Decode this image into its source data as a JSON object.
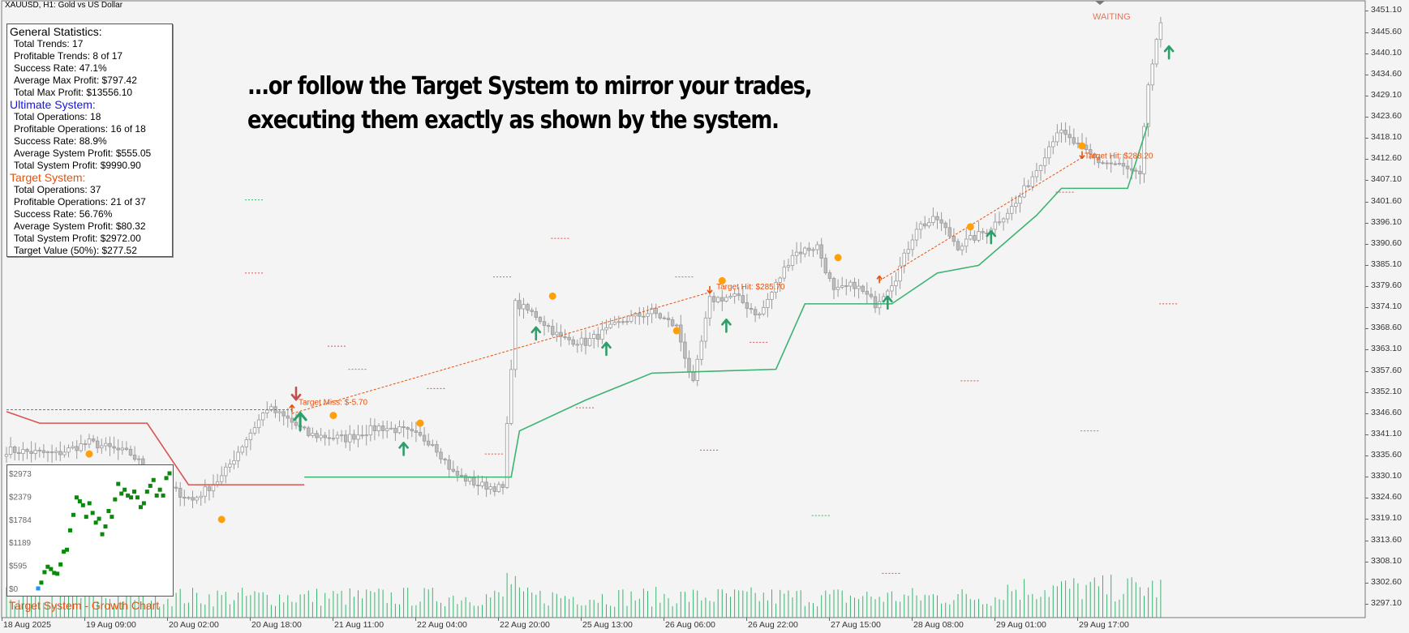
{
  "symbol_title": "XAUUSD, H1:  Gold vs US Dollar",
  "overlay_text": [
    "...or follow the Target System to mirror your trades,",
    "executing them exactly as shown by the system."
  ],
  "general": {
    "title": "General Statistics:",
    "rows": [
      "Total Trends: 17",
      "Profitable Trends: 8 of 17",
      "Success Rate: 47.1%",
      "Average Max Profit: $797.42",
      "Total Max Profit: $13556.10"
    ]
  },
  "ultimate": {
    "title": "Ultimate System:",
    "rows": [
      "Total Operations: 18",
      "Profitable Operations: 16 of 18",
      "Success Rate: 88.9%",
      "Average System Profit: $555.05",
      "Total System Profit: $9990.90"
    ]
  },
  "target": {
    "title": "Target System:",
    "rows": [
      "Total Operations: 37",
      "Profitable Operations: 21 of 37",
      "Success Rate: 56.76%",
      "Average System Profit: $80.32",
      "Total System Profit: $2972.00",
      "Target Value (50%): $277.52"
    ]
  },
  "status_text": "WAITING",
  "trade_labels": [
    "Target Miss: $-5.70",
    "Target Hit: $285.70",
    "Target Hit: $288.20"
  ],
  "growth_chart": {
    "caption": "Target System - Growth Chart",
    "y_ticks": [
      "$2973",
      "$2379",
      "$1784",
      "$1189",
      "$595",
      "$0"
    ],
    "y_max": 2973,
    "points": [
      0,
      150,
      420,
      560,
      500,
      400,
      380,
      620,
      950,
      1000,
      1500,
      1900,
      2350,
      2250,
      2150,
      1850,
      2200,
      1950,
      1700,
      1800,
      1400,
      1600,
      2000,
      1850,
      2300,
      2700,
      2450,
      2550,
      2400,
      2350,
      2500,
      2350,
      2100,
      2200,
      2500,
      2650,
      2800,
      2400,
      2550,
      2400,
      2850,
      2973
    ],
    "colors": {
      "point": "#0a8a0a",
      "start": "#1e90ff"
    }
  },
  "chart_data": {
    "type": "candlestick",
    "title": "XAUUSD, H1:  Gold vs US Dollar",
    "ylim": [
      3293.5,
      3453.5
    ],
    "y_ticks": [
      "3451.10",
      "3445.60",
      "3440.10",
      "3434.60",
      "3429.10",
      "3423.60",
      "3418.10",
      "3412.60",
      "3407.10",
      "3401.60",
      "3396.10",
      "3390.60",
      "3385.10",
      "3379.60",
      "3374.10",
      "3368.60",
      "3363.10",
      "3357.60",
      "3352.10",
      "3346.60",
      "3341.10",
      "3335.60",
      "3330.10",
      "3324.60",
      "3319.10",
      "3313.60",
      "3308.10",
      "3302.60",
      "3297.10"
    ],
    "x_ticks": [
      "18 Aug 2025",
      "19 Aug 09:00",
      "20 Aug 02:00",
      "20 Aug 18:00",
      "21 Aug 11:00",
      "22 Aug 04:00",
      "22 Aug 20:00",
      "25 Aug 13:00",
      "26 Aug 06:00",
      "26 Aug 22:00",
      "27 Aug 15:00",
      "28 Aug 08:00",
      "29 Aug 01:00",
      "29 Aug 17:00"
    ],
    "close_anchors": [
      [
        0,
        3337
      ],
      [
        12,
        3336
      ],
      [
        20,
        3339
      ],
      [
        30,
        3336
      ],
      [
        38,
        3328
      ],
      [
        45,
        3324
      ],
      [
        52,
        3330
      ],
      [
        58,
        3340
      ],
      [
        63,
        3348
      ],
      [
        68,
        3345
      ],
      [
        73,
        3341
      ],
      [
        82,
        3340
      ],
      [
        90,
        3343
      ],
      [
        96,
        3342
      ],
      [
        103,
        3339
      ],
      [
        108,
        3331
      ],
      [
        114,
        3328
      ],
      [
        120,
        3327
      ],
      [
        123,
        3375
      ],
      [
        128,
        3372
      ],
      [
        134,
        3366
      ],
      [
        140,
        3365
      ],
      [
        150,
        3371
      ],
      [
        156,
        3373
      ],
      [
        162,
        3369
      ],
      [
        166,
        3354
      ],
      [
        170,
        3376
      ],
      [
        176,
        3377
      ],
      [
        182,
        3372
      ],
      [
        190,
        3388
      ],
      [
        196,
        3390
      ],
      [
        200,
        3378
      ],
      [
        205,
        3380
      ],
      [
        210,
        3375
      ],
      [
        215,
        3382
      ],
      [
        220,
        3395
      ],
      [
        225,
        3397
      ],
      [
        230,
        3390
      ],
      [
        237,
        3394
      ],
      [
        244,
        3401
      ],
      [
        249,
        3410
      ],
      [
        254,
        3420
      ],
      [
        259,
        3416
      ],
      [
        264,
        3412
      ],
      [
        269,
        3411
      ],
      [
        274,
        3408
      ],
      [
        276,
        3432
      ],
      [
        279,
        3448
      ]
    ],
    "ultimate_trail": {
      "color": "#3cb371",
      "points": [
        [
          72,
          3330
        ],
        [
          122,
          3330
        ],
        [
          124,
          3342
        ],
        [
          140,
          3350
        ],
        [
          156,
          3357
        ],
        [
          186,
          3358
        ],
        [
          193,
          3375
        ],
        [
          214,
          3375
        ],
        [
          225,
          3383
        ],
        [
          235,
          3385
        ],
        [
          249,
          3398
        ],
        [
          255,
          3405
        ],
        [
          271,
          3405
        ],
        [
          276,
          3422
        ]
      ]
    },
    "red_trail": {
      "color": "#d9534f",
      "points": [
        [
          0,
          3347
        ],
        [
          8,
          3344
        ],
        [
          34,
          3344
        ],
        [
          44,
          3328
        ],
        [
          72,
          3328
        ]
      ]
    },
    "target_lines": [
      {
        "x": [
          0,
          69
        ],
        "y": [
          3347.5,
          3347.5
        ],
        "color": "#e8510b"
      },
      {
        "x": [
          69,
          170
        ],
        "y": [
          3346.5,
          3378
        ],
        "color": "#e8510b"
      },
      {
        "x": [
          211,
          260
        ],
        "y": [
          3381,
          3413
        ],
        "color": "#e8510b"
      }
    ],
    "up_arrows": [
      [
        71,
        3344,
        1.4
      ],
      [
        96,
        3337,
        1
      ],
      [
        128,
        3367,
        1
      ],
      [
        145,
        3363,
        1
      ],
      [
        174,
        3369,
        1
      ],
      [
        213,
        3375,
        1
      ],
      [
        238,
        3392,
        1
      ],
      [
        281,
        3440,
        1
      ]
    ],
    "down_arrows": [
      [
        70,
        3352
      ]
    ],
    "dots": [
      [
        20,
        3336
      ],
      [
        52,
        3319
      ],
      [
        79,
        3346
      ],
      [
        100,
        3344
      ],
      [
        132,
        3377
      ],
      [
        162,
        3368
      ],
      [
        173,
        3381
      ],
      [
        201,
        3387
      ],
      [
        233,
        3395
      ],
      [
        260,
        3416
      ]
    ],
    "volume": {
      "color": "#3cb371",
      "max": 10,
      "base": 0.35
    }
  }
}
